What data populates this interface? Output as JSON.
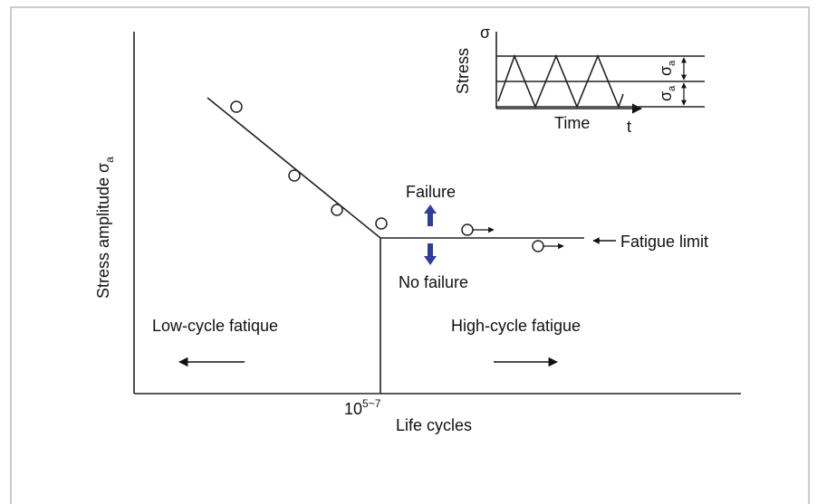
{
  "diagram": {
    "y_label": "Stress amplitude σ",
    "y_label_subscript": "a",
    "x_label": "Life cycles",
    "x_tick": "10",
    "x_tick_superscript": "5~7",
    "failure": "Failure",
    "no_failure": "No failure",
    "fatigue_limit": "Fatigue limit",
    "low_cycle": "Low-cycle fatique",
    "high_cycle": "High-cycle fatigue",
    "inset": {
      "y_label": "Stress",
      "y_symbol": "σ",
      "x_label": "Time",
      "x_symbol": "t",
      "amplitude_labels": [
        {
          "symbol": "σ",
          "subscript": "a"
        },
        {
          "symbol": "σ",
          "subscript": "a"
        }
      ]
    }
  }
}
